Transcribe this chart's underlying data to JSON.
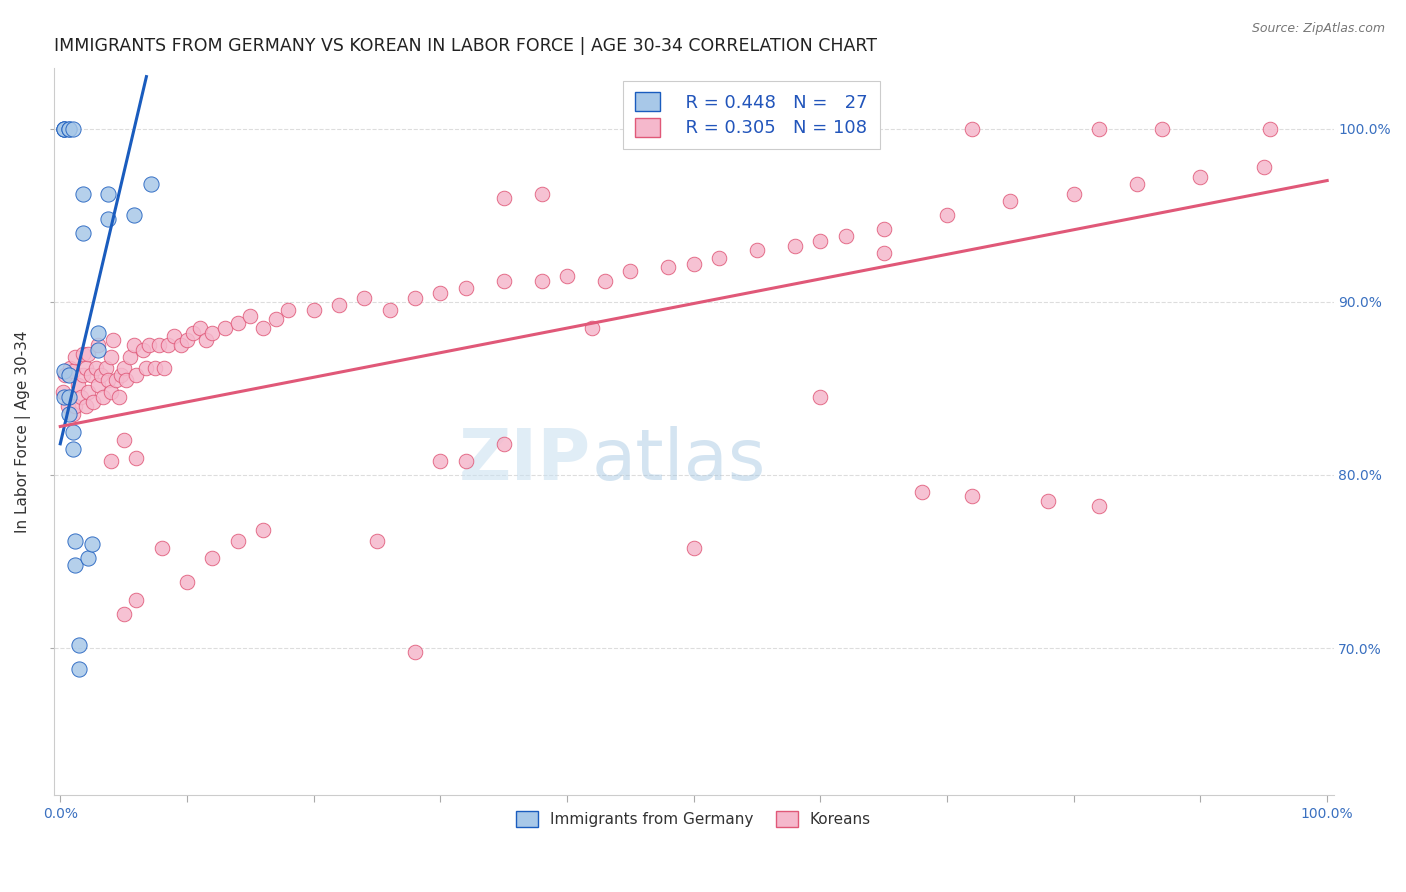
{
  "title": "IMMIGRANTS FROM GERMANY VS KOREAN IN LABOR FORCE | AGE 30-34 CORRELATION CHART",
  "source": "Source: ZipAtlas.com",
  "ylabel": "In Labor Force | Age 30-34",
  "xlim": [
    -0.005,
    1.005
  ],
  "ylim": [
    0.615,
    1.035
  ],
  "x_ticks": [
    0.0,
    0.1,
    0.2,
    0.3,
    0.4,
    0.5,
    0.6,
    0.7,
    0.8,
    0.9,
    1.0
  ],
  "x_tick_labels_show": [
    "0.0%",
    "100.0%"
  ],
  "y_ticks": [
    0.7,
    0.8,
    0.9,
    1.0
  ],
  "y_tick_labels": [
    "70.0%",
    "80.0%",
    "90.0%",
    "100.0%"
  ],
  "germany_R": "0.448",
  "germany_N": "27",
  "korean_R": "0.305",
  "korean_N": "108",
  "legend_labels": [
    "Immigrants from Germany",
    "Koreans"
  ],
  "germany_color": "#a8c8e8",
  "korean_color": "#f5b8cc",
  "germany_line_color": "#1a5cbe",
  "korean_line_color": "#e05878",
  "watermark_zip": "ZIP",
  "watermark_atlas": "atlas",
  "background_color": "#ffffff",
  "grid_color": "#dddddd",
  "germany_points_x": [
    0.003,
    0.003,
    0.003,
    0.003,
    0.003,
    0.007,
    0.007,
    0.007,
    0.007,
    0.007,
    0.01,
    0.01,
    0.01,
    0.012,
    0.012,
    0.015,
    0.015,
    0.018,
    0.018,
    0.022,
    0.025,
    0.03,
    0.03,
    0.038,
    0.038,
    0.058,
    0.072
  ],
  "germany_points_y": [
    0.845,
    0.86,
    1.0,
    1.0,
    1.0,
    0.835,
    0.845,
    0.858,
    1.0,
    1.0,
    0.815,
    0.825,
    1.0,
    0.748,
    0.762,
    0.688,
    0.702,
    0.94,
    0.962,
    0.752,
    0.76,
    0.872,
    0.882,
    0.948,
    0.962,
    0.95,
    0.968
  ],
  "korean_points_x": [
    0.002,
    0.004,
    0.006,
    0.008,
    0.01,
    0.01,
    0.012,
    0.012,
    0.014,
    0.016,
    0.018,
    0.018,
    0.02,
    0.02,
    0.022,
    0.022,
    0.024,
    0.026,
    0.028,
    0.03,
    0.03,
    0.032,
    0.034,
    0.036,
    0.038,
    0.04,
    0.04,
    0.042,
    0.044,
    0.046,
    0.048,
    0.05,
    0.052,
    0.055,
    0.058,
    0.06,
    0.065,
    0.068,
    0.07,
    0.075,
    0.078,
    0.082,
    0.085,
    0.09,
    0.095,
    0.1,
    0.105,
    0.11,
    0.115,
    0.12,
    0.13,
    0.14,
    0.15,
    0.16,
    0.17,
    0.18,
    0.2,
    0.22,
    0.24,
    0.26,
    0.28,
    0.3,
    0.32,
    0.35,
    0.38,
    0.4,
    0.43,
    0.45,
    0.48,
    0.5,
    0.52,
    0.55,
    0.58,
    0.6,
    0.62,
    0.65,
    0.7,
    0.75,
    0.8,
    0.85,
    0.9,
    0.95,
    0.04,
    0.05,
    0.06,
    0.3,
    0.35,
    0.05,
    0.06,
    0.08,
    0.1,
    0.12,
    0.14,
    0.16,
    0.38,
    0.32,
    0.25,
    0.28,
    0.42,
    0.5,
    0.35,
    0.6,
    0.65,
    0.68,
    0.72,
    0.78,
    0.82
  ],
  "korean_points_y": [
    0.848,
    0.858,
    0.84,
    0.862,
    0.835,
    0.86,
    0.84,
    0.868,
    0.852,
    0.845,
    0.858,
    0.87,
    0.84,
    0.862,
    0.848,
    0.87,
    0.858,
    0.842,
    0.862,
    0.852,
    0.875,
    0.858,
    0.845,
    0.862,
    0.855,
    0.848,
    0.868,
    0.878,
    0.855,
    0.845,
    0.858,
    0.862,
    0.855,
    0.868,
    0.875,
    0.858,
    0.872,
    0.862,
    0.875,
    0.862,
    0.875,
    0.862,
    0.875,
    0.88,
    0.875,
    0.878,
    0.882,
    0.885,
    0.878,
    0.882,
    0.885,
    0.888,
    0.892,
    0.885,
    0.89,
    0.895,
    0.895,
    0.898,
    0.902,
    0.895,
    0.902,
    0.905,
    0.908,
    0.912,
    0.912,
    0.915,
    0.912,
    0.918,
    0.92,
    0.922,
    0.925,
    0.93,
    0.932,
    0.935,
    0.938,
    0.942,
    0.95,
    0.958,
    0.962,
    0.968,
    0.972,
    0.978,
    0.808,
    0.82,
    0.81,
    0.808,
    0.818,
    0.72,
    0.728,
    0.758,
    0.738,
    0.752,
    0.762,
    0.768,
    0.962,
    0.808,
    0.762,
    0.698,
    0.885,
    0.758,
    0.96,
    0.845,
    0.928,
    0.79,
    0.788,
    0.785,
    0.782
  ],
  "korea_top_x": [
    0.56,
    0.62,
    0.72,
    0.82,
    0.87,
    0.955
  ],
  "korea_top_y": [
    1.0,
    1.0,
    1.0,
    1.0,
    1.0,
    1.0
  ],
  "germany_line_x": [
    0.0,
    0.068
  ],
  "germany_line_y0": 0.818,
  "germany_line_y1": 1.03,
  "korean_line_x0": 0.0,
  "korean_line_x1": 1.0,
  "korean_line_y0": 0.828,
  "korean_line_y1": 0.97
}
